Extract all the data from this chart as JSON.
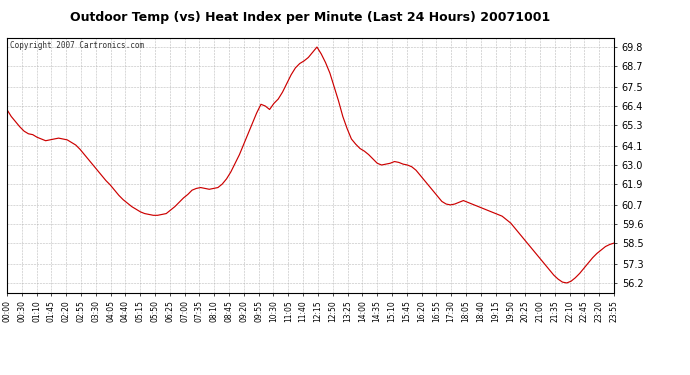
{
  "title": "Outdoor Temp (vs) Heat Index per Minute (Last 24 Hours) 20071001",
  "copyright": "Copyright 2007 Cartronics.com",
  "line_color": "#cc0000",
  "bg_color": "#ffffff",
  "plot_bg_color": "#ffffff",
  "grid_color": "#aaaaaa",
  "yticks": [
    56.2,
    57.3,
    58.5,
    59.6,
    60.7,
    61.9,
    63.0,
    64.1,
    65.3,
    66.4,
    67.5,
    68.7,
    69.8
  ],
  "ymin": 55.65,
  "ymax": 70.35,
  "xtick_labels": [
    "00:00",
    "00:30",
    "01:10",
    "01:45",
    "02:20",
    "02:55",
    "03:30",
    "04:05",
    "04:40",
    "05:15",
    "05:50",
    "06:25",
    "07:00",
    "07:35",
    "08:10",
    "08:45",
    "09:20",
    "09:55",
    "10:30",
    "11:05",
    "11:40",
    "12:15",
    "12:50",
    "13:25",
    "14:00",
    "14:35",
    "15:10",
    "15:45",
    "16:20",
    "16:55",
    "17:30",
    "18:05",
    "18:40",
    "19:15",
    "19:50",
    "20:25",
    "21:00",
    "21:35",
    "22:10",
    "22:45",
    "23:20",
    "23:55"
  ],
  "curve_y": [
    66.2,
    65.8,
    65.5,
    65.2,
    64.95,
    64.8,
    64.75,
    64.6,
    64.5,
    64.4,
    64.45,
    64.5,
    64.55,
    64.5,
    64.45,
    64.3,
    64.15,
    63.9,
    63.6,
    63.3,
    63.0,
    62.7,
    62.4,
    62.1,
    61.85,
    61.55,
    61.25,
    61.0,
    60.8,
    60.6,
    60.45,
    60.3,
    60.2,
    60.15,
    60.1,
    60.1,
    60.15,
    60.2,
    60.4,
    60.6,
    60.85,
    61.1,
    61.3,
    61.55,
    61.65,
    61.7,
    61.65,
    61.6,
    61.65,
    61.7,
    61.9,
    62.2,
    62.6,
    63.1,
    63.6,
    64.2,
    64.8,
    65.4,
    66.0,
    66.5,
    66.4,
    66.2,
    66.55,
    66.8,
    67.2,
    67.7,
    68.2,
    68.6,
    68.85,
    69.0,
    69.2,
    69.5,
    69.8,
    69.4,
    68.9,
    68.3,
    67.5,
    66.7,
    65.8,
    65.1,
    64.5,
    64.2,
    63.95,
    63.8,
    63.6,
    63.35,
    63.1,
    63.0,
    63.05,
    63.1,
    63.2,
    63.15,
    63.05,
    63.0,
    62.9,
    62.7,
    62.4,
    62.1,
    61.8,
    61.5,
    61.2,
    60.9,
    60.75,
    60.7,
    60.75,
    60.85,
    60.95,
    60.85,
    60.75,
    60.65,
    60.55,
    60.45,
    60.35,
    60.25,
    60.15,
    60.05,
    59.85,
    59.65,
    59.35,
    59.05,
    58.75,
    58.45,
    58.15,
    57.85,
    57.55,
    57.25,
    56.95,
    56.65,
    56.42,
    56.25,
    56.2,
    56.3,
    56.5,
    56.75,
    57.05,
    57.35,
    57.65,
    57.9,
    58.1,
    58.3,
    58.42,
    58.5
  ]
}
